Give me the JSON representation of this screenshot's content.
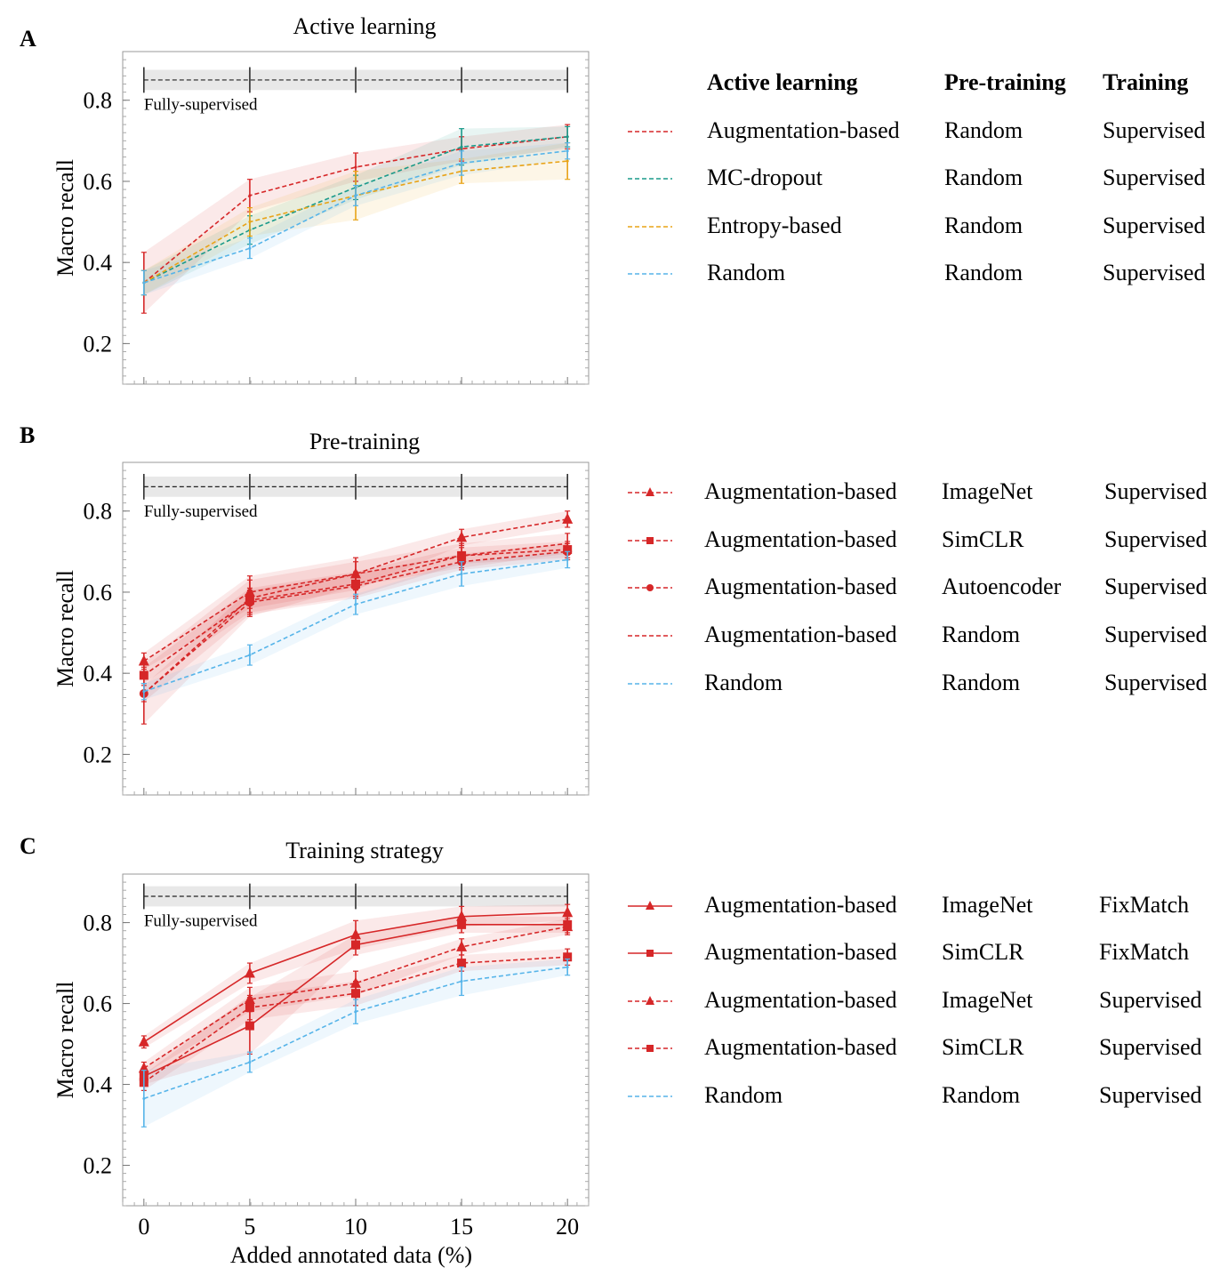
{
  "figure": {
    "axis": {
      "x_min": -1,
      "x_max": 21,
      "y_min": 0.1,
      "y_max": 0.92,
      "x_ticks": [
        0,
        5,
        10,
        15,
        20
      ],
      "y_ticks": [
        0.2,
        0.4,
        0.6,
        0.8
      ]
    }
  },
  "chart_data": [
    {
      "type": "line",
      "panel_label": "A",
      "title": "Active learning",
      "xlabel": "",
      "ylabel": "Macro recall",
      "x": [
        0,
        5,
        10,
        15,
        20
      ],
      "xlim": [
        -1,
        21
      ],
      "ylim": [
        0.1,
        0.92
      ],
      "x_tick_labels": [],
      "y_tick_labels": [
        "0.2",
        "0.4",
        "0.6",
        "0.8"
      ],
      "reference": {
        "label": "Fully-supervised",
        "value": 0.85,
        "band": [
          0.825,
          0.875
        ]
      },
      "legend_headers": [
        "Active learning",
        "Pre-training",
        "Training"
      ],
      "series": [
        {
          "name": "Augmentation-based",
          "pretraining": "Random",
          "training": "Supervised",
          "color": "#d62728",
          "style": "dashed",
          "marker": "none",
          "values": [
            0.35,
            0.565,
            0.635,
            0.68,
            0.71
          ],
          "err": [
            0.075,
            0.04,
            0.035,
            0.03,
            0.03
          ]
        },
        {
          "name": "MC-dropout",
          "pretraining": "Random",
          "training": "Supervised",
          "color": "#1a9a8a",
          "style": "dashed",
          "marker": "none",
          "values": [
            0.35,
            0.48,
            0.585,
            0.685,
            0.71
          ],
          "err": [
            0.03,
            0.035,
            0.03,
            0.045,
            0.025
          ]
        },
        {
          "name": "Entropy-based",
          "pretraining": "Random",
          "training": "Supervised",
          "color": "#e8a317",
          "style": "dashed",
          "marker": "none",
          "values": [
            0.35,
            0.5,
            0.565,
            0.625,
            0.65
          ],
          "err": [
            0.03,
            0.035,
            0.06,
            0.03,
            0.045
          ]
        },
        {
          "name": "Random",
          "pretraining": "Random",
          "training": "Supervised",
          "color": "#56b4e9",
          "style": "dashed",
          "marker": "none",
          "values": [
            0.35,
            0.435,
            0.565,
            0.645,
            0.675
          ],
          "err": [
            0.03,
            0.025,
            0.025,
            0.03,
            0.02
          ]
        }
      ]
    },
    {
      "type": "line",
      "panel_label": "B",
      "title": "Pre-training",
      "xlabel": "",
      "ylabel": "Macro recall",
      "x": [
        0,
        5,
        10,
        15,
        20
      ],
      "xlim": [
        -1,
        21
      ],
      "ylim": [
        0.1,
        0.92
      ],
      "x_tick_labels": [],
      "y_tick_labels": [
        "0.2",
        "0.4",
        "0.6",
        "0.8"
      ],
      "reference": {
        "label": "Fully-supervised",
        "value": 0.86,
        "band": [
          0.835,
          0.885
        ]
      },
      "legend_headers": [],
      "series": [
        {
          "name": "Augmentation-based",
          "pretraining": "ImageNet",
          "training": "Supervised",
          "color": "#d62728",
          "style": "dashed",
          "marker": "triangle",
          "values": [
            0.43,
            0.6,
            0.645,
            0.735,
            0.78
          ],
          "err": [
            0.02,
            0.04,
            0.04,
            0.02,
            0.02
          ]
        },
        {
          "name": "Augmentation-based",
          "pretraining": "SimCLR",
          "training": "Supervised",
          "color": "#d62728",
          "style": "dashed",
          "marker": "square",
          "values": [
            0.395,
            0.58,
            0.62,
            0.69,
            0.705
          ],
          "err": [
            0.02,
            0.03,
            0.03,
            0.02,
            0.02
          ]
        },
        {
          "name": "Augmentation-based",
          "pretraining": "Autoencoder",
          "training": "Supervised",
          "color": "#d62728",
          "style": "dashed",
          "marker": "circle",
          "values": [
            0.35,
            0.575,
            0.615,
            0.675,
            0.7
          ],
          "err": [
            0.02,
            0.03,
            0.03,
            0.02,
            0.02
          ]
        },
        {
          "name": "Augmentation-based",
          "pretraining": "Random",
          "training": "Supervised",
          "color": "#d62728",
          "style": "dashed",
          "marker": "none",
          "values": [
            0.35,
            0.585,
            0.645,
            0.69,
            0.72
          ],
          "err": [
            0.075,
            0.045,
            0.03,
            0.03,
            0.025
          ]
        },
        {
          "name": "Random",
          "pretraining": "Random",
          "training": "Supervised",
          "color": "#56b4e9",
          "style": "dashed",
          "marker": "none",
          "values": [
            0.355,
            0.445,
            0.57,
            0.645,
            0.68
          ],
          "err": [
            0.02,
            0.025,
            0.025,
            0.03,
            0.02
          ]
        }
      ]
    },
    {
      "type": "line",
      "panel_label": "C",
      "title": "Training strategy",
      "xlabel": "Added annotated data (%)",
      "ylabel": "Macro recall",
      "x": [
        0,
        5,
        10,
        15,
        20
      ],
      "xlim": [
        -1,
        21
      ],
      "ylim": [
        0.1,
        0.92
      ],
      "x_tick_labels": [
        "0",
        "5",
        "10",
        "15",
        "20"
      ],
      "y_tick_labels": [
        "0.2",
        "0.4",
        "0.6",
        "0.8"
      ],
      "reference": {
        "label": "Fully-supervised",
        "value": 0.865,
        "band": [
          0.84,
          0.89
        ]
      },
      "legend_headers": [],
      "series": [
        {
          "name": "Augmentation-based",
          "pretraining": "ImageNet",
          "training": "FixMatch",
          "color": "#d62728",
          "style": "solid",
          "marker": "triangle",
          "values": [
            0.505,
            0.675,
            0.77,
            0.815,
            0.825
          ],
          "err": [
            0.015,
            0.025,
            0.035,
            0.025,
            0.02
          ]
        },
        {
          "name": "Augmentation-based",
          "pretraining": "SimCLR",
          "training": "FixMatch",
          "color": "#d62728",
          "style": "solid",
          "marker": "square",
          "values": [
            0.42,
            0.545,
            0.745,
            0.795,
            0.795
          ],
          "err": [
            0.02,
            0.07,
            0.025,
            0.02,
            0.02
          ]
        },
        {
          "name": "Augmentation-based",
          "pretraining": "ImageNet",
          "training": "Supervised",
          "color": "#d62728",
          "style": "dashed",
          "marker": "triangle",
          "values": [
            0.44,
            0.61,
            0.65,
            0.74,
            0.79
          ],
          "err": [
            0.015,
            0.03,
            0.03,
            0.02,
            0.02
          ]
        },
        {
          "name": "Augmentation-based",
          "pretraining": "SimCLR",
          "training": "Supervised",
          "color": "#d62728",
          "style": "dashed",
          "marker": "square",
          "values": [
            0.405,
            0.59,
            0.625,
            0.7,
            0.715
          ],
          "err": [
            0.02,
            0.03,
            0.03,
            0.02,
            0.02
          ]
        },
        {
          "name": "Random",
          "pretraining": "Random",
          "training": "Supervised",
          "color": "#56b4e9",
          "style": "dashed",
          "marker": "none",
          "values": [
            0.365,
            0.455,
            0.58,
            0.655,
            0.69
          ],
          "err": [
            0.07,
            0.025,
            0.03,
            0.035,
            0.02
          ]
        }
      ]
    }
  ]
}
